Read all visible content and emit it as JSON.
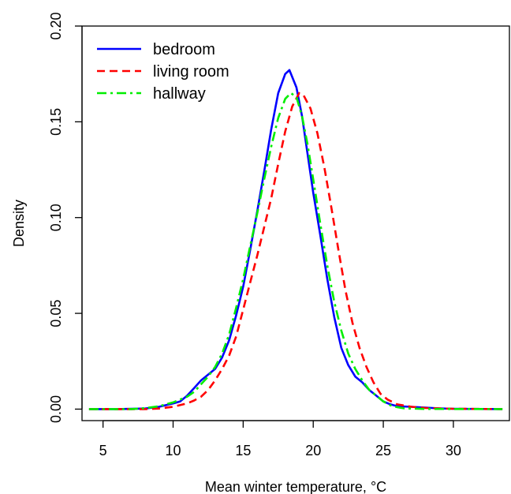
{
  "chart_data": {
    "type": "line",
    "title": "",
    "xlabel": "Mean winter temperature, °C",
    "ylabel": "Density",
    "xlim": [
      3.5,
      34
    ],
    "ylim": [
      -0.006,
      0.2
    ],
    "x_ticks": [
      5,
      10,
      15,
      20,
      25,
      30
    ],
    "y_ticks": [
      0.0,
      0.05,
      0.1,
      0.15,
      0.2
    ],
    "x_tick_labels": [
      "5",
      "10",
      "15",
      "20",
      "25",
      "30"
    ],
    "y_tick_labels": [
      "0.00",
      "0.05",
      "0.10",
      "0.15",
      "0.20"
    ],
    "legend_position": "top-left",
    "grid": false,
    "series": [
      {
        "name": "bedroom",
        "color": "#0000ff",
        "style": "solid",
        "points": [
          [
            4,
            0
          ],
          [
            6,
            0
          ],
          [
            8,
            0.0003
          ],
          [
            9,
            0.0012
          ],
          [
            10,
            0.003
          ],
          [
            10.5,
            0.004
          ],
          [
            11,
            0.007
          ],
          [
            11.5,
            0.011
          ],
          [
            12,
            0.015
          ],
          [
            12.5,
            0.018
          ],
          [
            13,
            0.021
          ],
          [
            13.5,
            0.027
          ],
          [
            14,
            0.036
          ],
          [
            14.5,
            0.049
          ],
          [
            15,
            0.064
          ],
          [
            15.5,
            0.083
          ],
          [
            16,
            0.103
          ],
          [
            16.5,
            0.124
          ],
          [
            17,
            0.146
          ],
          [
            17.5,
            0.165
          ],
          [
            18,
            0.175
          ],
          [
            18.3,
            0.177
          ],
          [
            18.8,
            0.168
          ],
          [
            19.2,
            0.153
          ],
          [
            19.6,
            0.133
          ],
          [
            20,
            0.113
          ],
          [
            20.5,
            0.091
          ],
          [
            21,
            0.068
          ],
          [
            21.5,
            0.048
          ],
          [
            22,
            0.032
          ],
          [
            22.5,
            0.023
          ],
          [
            23,
            0.017
          ],
          [
            23.5,
            0.014
          ],
          [
            24,
            0.01
          ],
          [
            24.5,
            0.007
          ],
          [
            25,
            0.004
          ],
          [
            25.5,
            0.0025
          ],
          [
            26,
            0.0015
          ],
          [
            27,
            0.0012
          ],
          [
            28,
            0.0008
          ],
          [
            29,
            0.0004
          ],
          [
            30,
            0.0002
          ],
          [
            33.5,
            0
          ]
        ]
      },
      {
        "name": "living room",
        "color": "#ff0000",
        "style": "dashed",
        "points": [
          [
            4,
            0
          ],
          [
            8,
            0
          ],
          [
            9,
            0.0003
          ],
          [
            10,
            0.0012
          ],
          [
            11,
            0.003
          ],
          [
            11.5,
            0.0045
          ],
          [
            12,
            0.0065
          ],
          [
            12.5,
            0.01
          ],
          [
            13,
            0.015
          ],
          [
            13.5,
            0.021
          ],
          [
            14,
            0.028
          ],
          [
            14.5,
            0.038
          ],
          [
            15,
            0.052
          ],
          [
            15.5,
            0.066
          ],
          [
            16,
            0.08
          ],
          [
            16.5,
            0.095
          ],
          [
            17,
            0.11
          ],
          [
            17.5,
            0.128
          ],
          [
            18,
            0.145
          ],
          [
            18.5,
            0.158
          ],
          [
            19,
            0.165
          ],
          [
            19.3,
            0.164
          ],
          [
            19.8,
            0.157
          ],
          [
            20.3,
            0.144
          ],
          [
            20.8,
            0.126
          ],
          [
            21.3,
            0.105
          ],
          [
            21.8,
            0.083
          ],
          [
            22.3,
            0.062
          ],
          [
            22.8,
            0.045
          ],
          [
            23.3,
            0.032
          ],
          [
            23.8,
            0.022
          ],
          [
            24.3,
            0.014
          ],
          [
            24.8,
            0.008
          ],
          [
            25.3,
            0.005
          ],
          [
            26,
            0.0025
          ],
          [
            27,
            0.0012
          ],
          [
            28,
            0.0006
          ],
          [
            30,
            0.0002
          ],
          [
            33.5,
            0
          ]
        ]
      },
      {
        "name": "hallway",
        "color": "#00ee00",
        "style": "dashdot",
        "points": [
          [
            4,
            0
          ],
          [
            7,
            0
          ],
          [
            8,
            0.0005
          ],
          [
            9,
            0.0015
          ],
          [
            10,
            0.0035
          ],
          [
            10.5,
            0.005
          ],
          [
            11,
            0.0065
          ],
          [
            11.5,
            0.009
          ],
          [
            12,
            0.013
          ],
          [
            12.5,
            0.017
          ],
          [
            13,
            0.022
          ],
          [
            13.5,
            0.029
          ],
          [
            14,
            0.039
          ],
          [
            14.5,
            0.053
          ],
          [
            15,
            0.068
          ],
          [
            15.5,
            0.085
          ],
          [
            16,
            0.102
          ],
          [
            16.5,
            0.12
          ],
          [
            17,
            0.137
          ],
          [
            17.5,
            0.152
          ],
          [
            18,
            0.162
          ],
          [
            18.4,
            0.165
          ],
          [
            18.8,
            0.163
          ],
          [
            19.2,
            0.153
          ],
          [
            19.6,
            0.138
          ],
          [
            20,
            0.12
          ],
          [
            20.5,
            0.097
          ],
          [
            21,
            0.075
          ],
          [
            21.5,
            0.056
          ],
          [
            22,
            0.041
          ],
          [
            22.5,
            0.029
          ],
          [
            23,
            0.021
          ],
          [
            23.5,
            0.015
          ],
          [
            24,
            0.01
          ],
          [
            24.5,
            0.007
          ],
          [
            25,
            0.004
          ],
          [
            25.5,
            0.002
          ],
          [
            26,
            0.001
          ],
          [
            26.5,
            0.0004
          ],
          [
            28,
            0.0001
          ],
          [
            33.5,
            0
          ]
        ]
      }
    ]
  }
}
